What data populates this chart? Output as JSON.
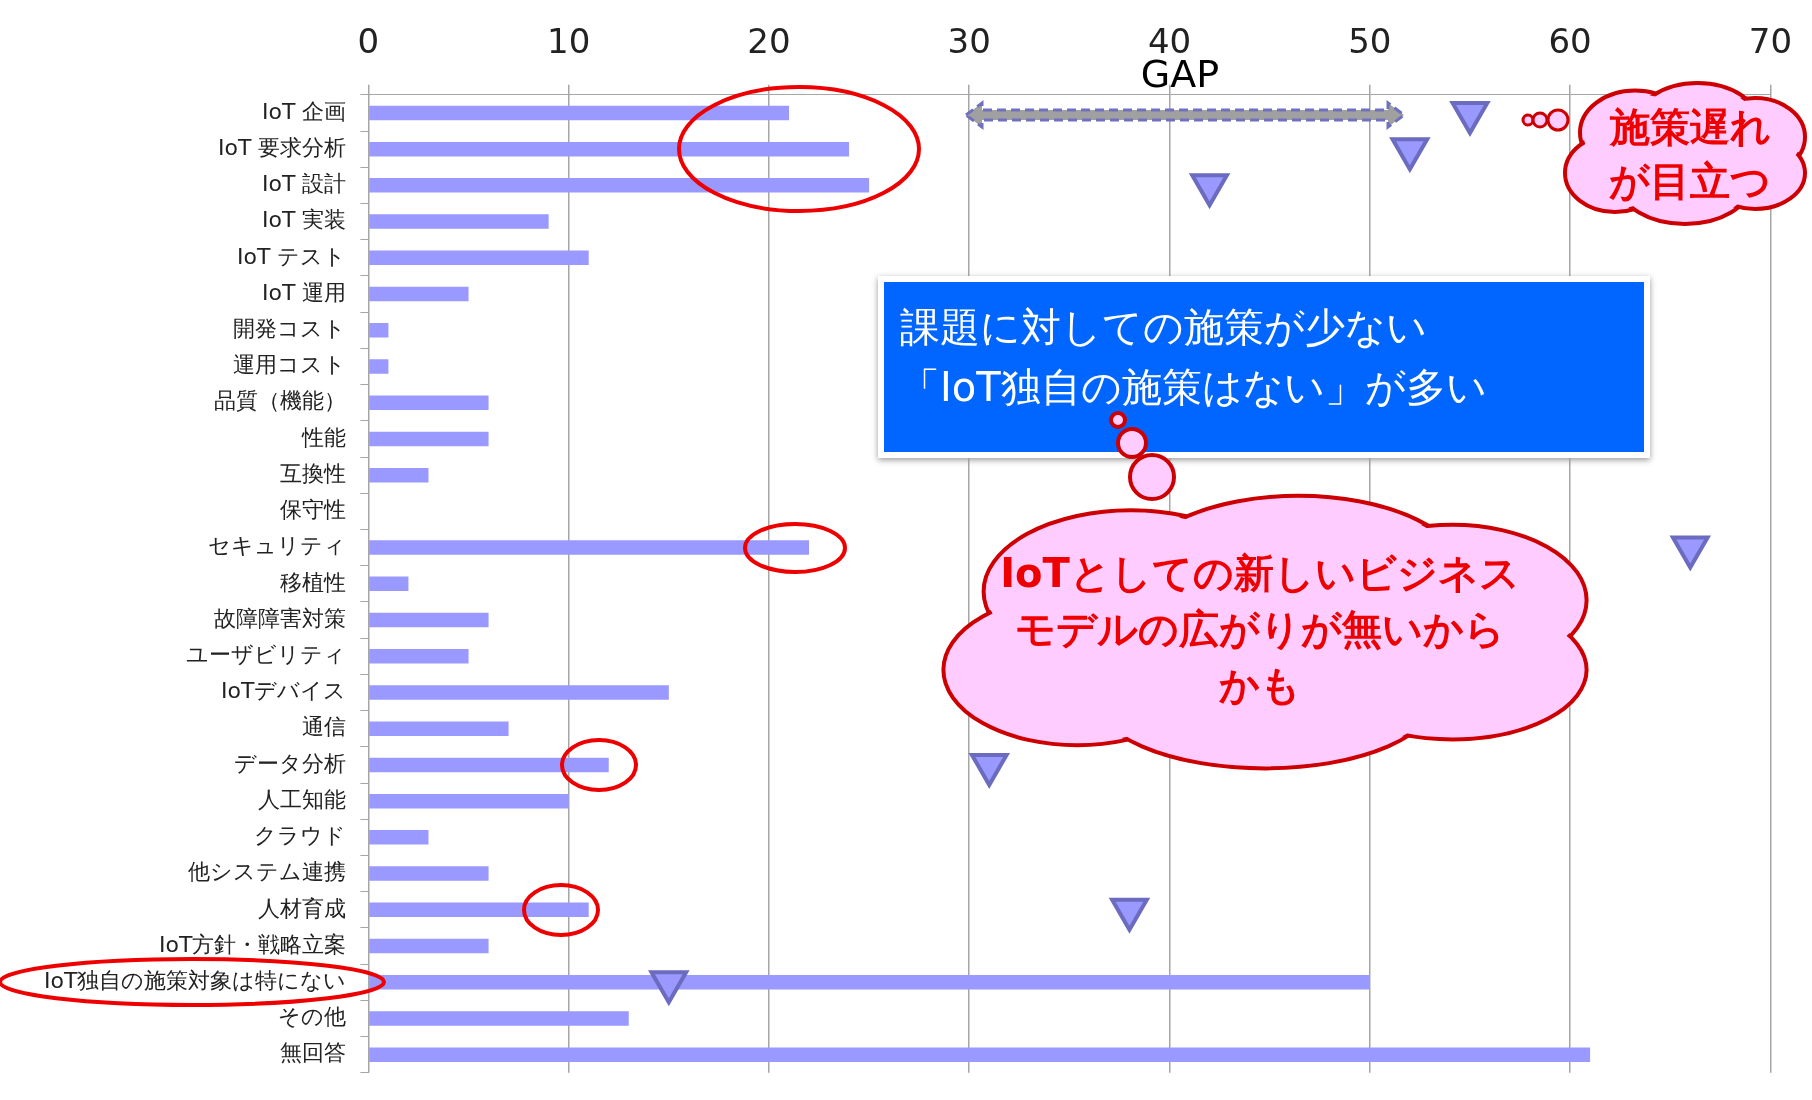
{
  "chart_data": {
    "type": "bar",
    "orientation": "horizontal",
    "categories": [
      "IoT 企画",
      "IoT 要求分析",
      "IoT 設計",
      "IoT 実装",
      "IoT テスト",
      "IoT 運用",
      "開発コスト",
      "運用コスト",
      "品質（機能）",
      "性能",
      "互換性",
      "保守性",
      "セキュリティ",
      "移植性",
      "故障障害対策",
      "ユーザビリティ",
      "IoTデバイス",
      "通信",
      "データ分析",
      "人工知能",
      "クラウド",
      "他システム連携",
      "人材育成",
      "IoT方針・戦略立案",
      "IoT独自の施策対象は特にない",
      "その他",
      "無回答"
    ],
    "series": [
      {
        "color": "#9999ff",
        "values": [
          21,
          24,
          25,
          9,
          11,
          5,
          1,
          1,
          6,
          6,
          3,
          0,
          22,
          2,
          6,
          5,
          15,
          7,
          12,
          10,
          3,
          6,
          11,
          6,
          50,
          13,
          61
        ]
      },
      {
        "type": "scatter",
        "color": "#9999ff",
        "marker": "triangle",
        "values": [
          55,
          52,
          42,
          null,
          null,
          null,
          null,
          null,
          null,
          null,
          null,
          null,
          66,
          null,
          null,
          null,
          null,
          null,
          31,
          null,
          null,
          null,
          38,
          null,
          15,
          null,
          null
        ]
      }
    ],
    "xlim": [
      0,
      70
    ],
    "xticks": [
      0,
      10,
      20,
      30,
      40,
      50,
      60,
      70
    ],
    "grid": "x",
    "legend": false,
    "annotations": [
      "GAP",
      "課題に対しての施策が少ない",
      "「IoT独自の施策はない」が多い",
      "IoTとしての新しいビジネスモデルの広がりが無いからかも",
      "施策遅れが目立つ"
    ]
  }
}
